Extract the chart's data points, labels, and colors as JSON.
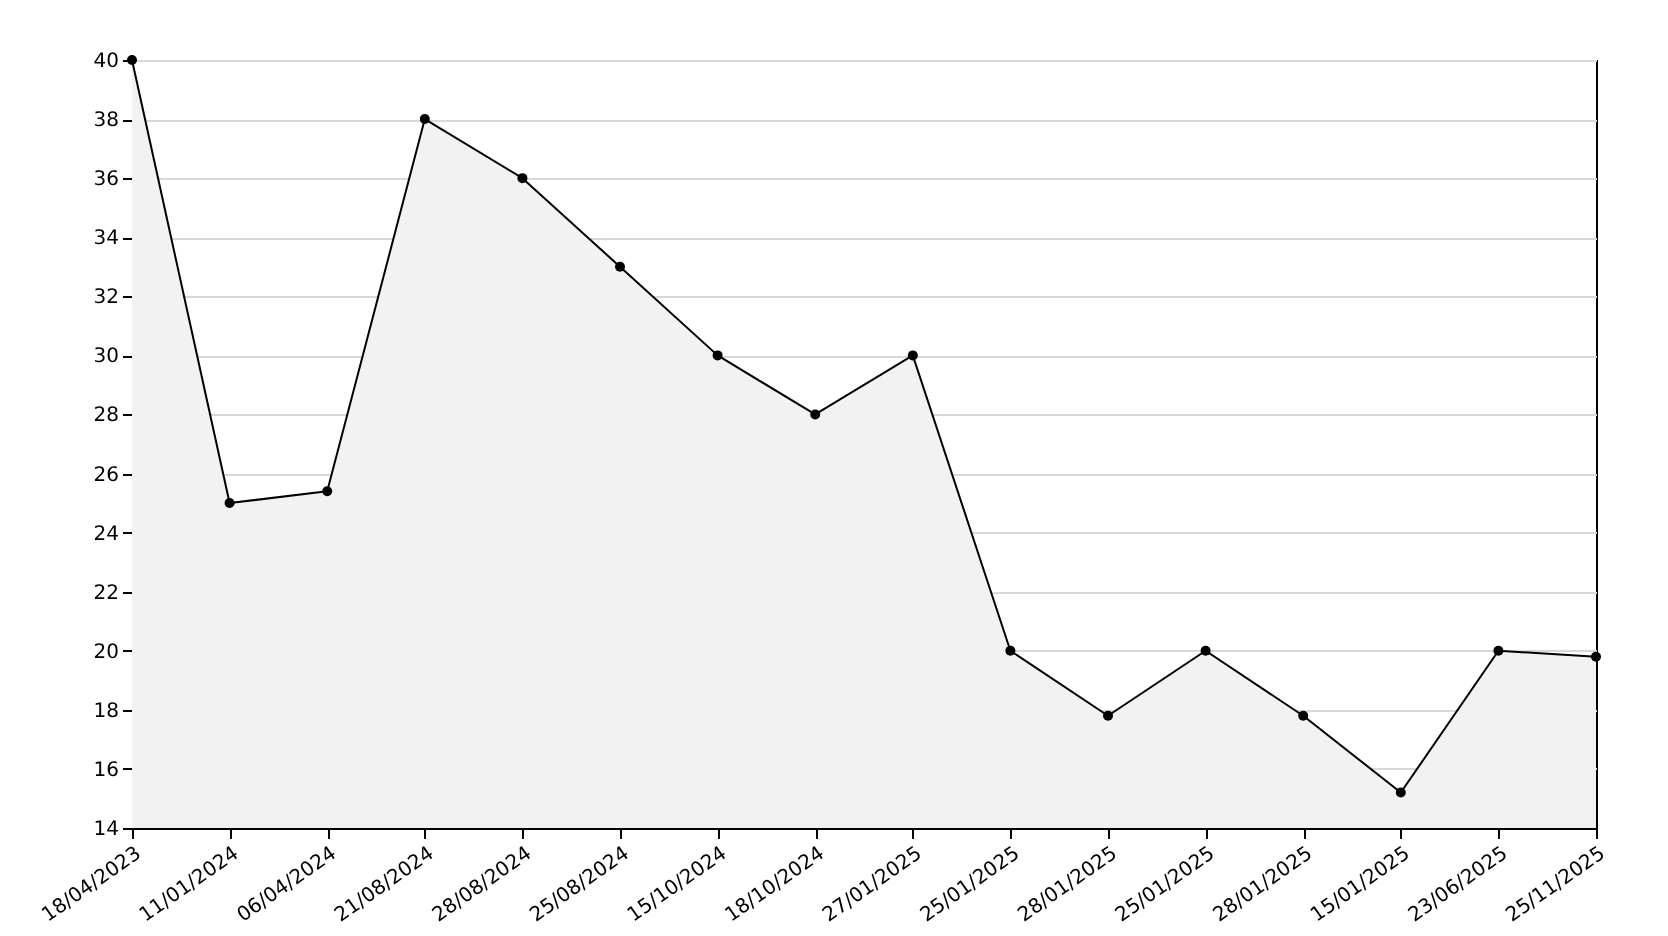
{
  "chart_data": {
    "type": "area",
    "categories": [
      "18/04/2023",
      "11/01/2024",
      "06/04/2024",
      "21/08/2024",
      "28/08/2024",
      "25/08/2024",
      "15/10/2024",
      "18/10/2024",
      "27/01/2025",
      "25/01/2025",
      "28/01/2025",
      "25/01/2025",
      "28/01/2025",
      "15/01/2025",
      "23/06/2025",
      "25/11/2025"
    ],
    "series": [
      {
        "color": "#000000",
        "values": [
          40,
          25,
          25.4,
          38,
          36,
          33,
          30,
          28,
          30,
          20,
          17.8,
          20,
          17.8,
          15.2,
          20,
          19.8
        ]
      }
    ],
    "ylim": [
      14,
      40
    ],
    "yticks": [
      14,
      16,
      18,
      20,
      22,
      24,
      26,
      28,
      30,
      32,
      34,
      36,
      38,
      40
    ],
    "grid": "y",
    "marker": "circle"
  }
}
